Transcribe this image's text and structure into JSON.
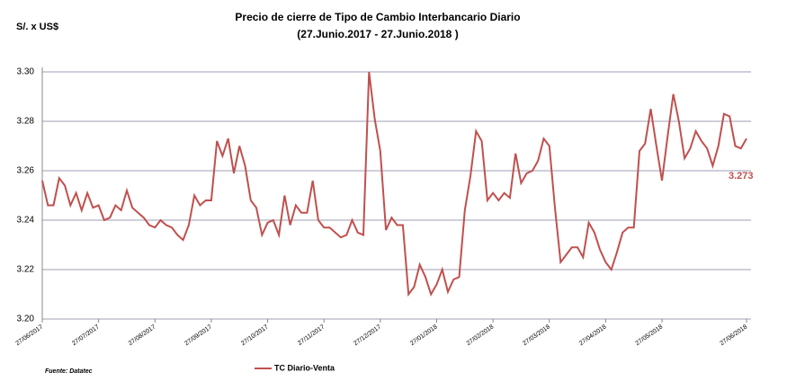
{
  "chart_data": {
    "type": "line",
    "title": "Precio de cierre de Tipo de Cambio Interbancario Diario",
    "subtitle": "(27.Junio.2017  -  27.Junio.2018 )",
    "y_label": "S/. x US$",
    "source": "Fuente: Datatec",
    "annotation": "3.273",
    "categories": [
      "27/06/2017",
      null,
      null,
      null,
      null,
      null,
      null,
      null,
      null,
      null,
      "27/07/2017",
      null,
      null,
      null,
      null,
      null,
      null,
      null,
      null,
      null,
      "27/08/2017",
      null,
      null,
      null,
      null,
      null,
      null,
      null,
      null,
      null,
      "27/09/2017",
      null,
      null,
      null,
      null,
      null,
      null,
      null,
      null,
      null,
      "27/10/2017",
      null,
      null,
      null,
      null,
      null,
      null,
      null,
      null,
      null,
      "27/11/2017",
      null,
      null,
      null,
      null,
      null,
      null,
      null,
      null,
      null,
      "27/12/2017",
      null,
      null,
      null,
      null,
      null,
      null,
      null,
      null,
      null,
      "27/01/2018",
      null,
      null,
      null,
      null,
      null,
      null,
      null,
      null,
      null,
      "27/02/2018",
      null,
      null,
      null,
      null,
      null,
      null,
      null,
      null,
      null,
      "27/03/2018",
      null,
      null,
      null,
      null,
      null,
      null,
      null,
      null,
      null,
      "27/04/2018",
      null,
      null,
      null,
      null,
      null,
      null,
      null,
      null,
      null,
      "27/05/2018",
      null,
      null,
      null,
      null,
      null,
      null,
      null,
      null,
      null,
      null,
      null,
      null,
      null,
      null,
      "27/06/2018"
    ],
    "series": [
      {
        "name": "TC Diario-Venta",
        "color": "#c0504d",
        "values": [
          3.256,
          3.246,
          3.246,
          3.257,
          3.254,
          3.246,
          3.251,
          3.244,
          3.251,
          3.245,
          3.246,
          3.24,
          3.241,
          3.246,
          3.244,
          3.252,
          3.245,
          3.243,
          3.241,
          3.238,
          3.237,
          3.24,
          3.238,
          3.237,
          3.234,
          3.232,
          3.238,
          3.25,
          3.246,
          3.248,
          3.248,
          3.272,
          3.266,
          3.273,
          3.259,
          3.27,
          3.262,
          3.248,
          3.245,
          3.234,
          3.239,
          3.24,
          3.234,
          3.25,
          3.238,
          3.246,
          3.243,
          3.243,
          3.256,
          3.24,
          3.237,
          3.237,
          3.235,
          3.233,
          3.234,
          3.24,
          3.235,
          3.234,
          3.3,
          3.281,
          3.268,
          3.236,
          3.241,
          3.238,
          3.238,
          3.21,
          3.213,
          3.222,
          3.217,
          3.21,
          3.214,
          3.22,
          3.211,
          3.216,
          3.217,
          3.244,
          3.258,
          3.276,
          3.272,
          3.248,
          3.251,
          3.248,
          3.251,
          3.249,
          3.267,
          3.255,
          3.259,
          3.26,
          3.264,
          3.273,
          3.27,
          3.245,
          3.223,
          3.226,
          3.229,
          3.229,
          3.225,
          3.239,
          3.235,
          3.228,
          3.223,
          3.22,
          3.227,
          3.235,
          3.237,
          3.237,
          3.268,
          3.271,
          3.285,
          3.27,
          3.256,
          3.274,
          3.291,
          3.28,
          3.265,
          3.269,
          3.276,
          3.272,
          3.269,
          3.262,
          3.27,
          3.283,
          3.282,
          3.27,
          3.269,
          3.273
        ]
      }
    ],
    "ylim": [
      3.2,
      3.3
    ],
    "yticks": [
      {
        "value": 3.2,
        "label": "3.20"
      },
      3.22,
      3.24,
      3.26,
      3.28,
      {
        "value": 3.3,
        "label": "3.30"
      }
    ],
    "grid": true
  }
}
